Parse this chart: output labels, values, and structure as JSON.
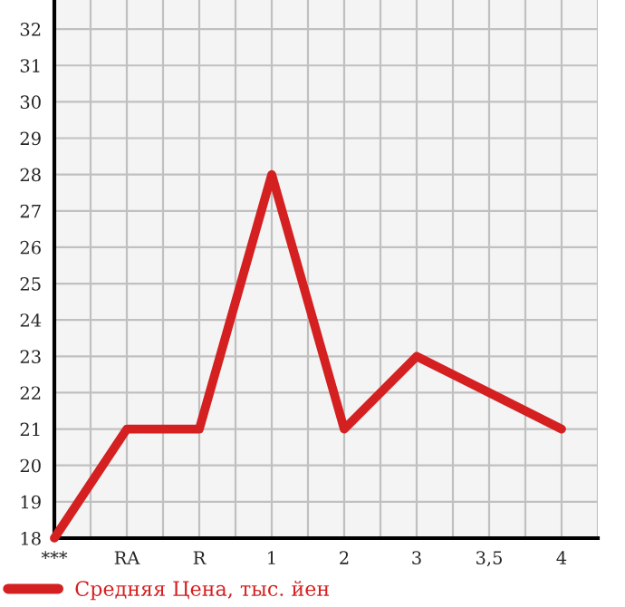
{
  "chart_data": {
    "type": "line",
    "categories": [
      "***",
      "RA",
      "R",
      "1",
      "2",
      "3",
      "3,5",
      "4"
    ],
    "series": [
      {
        "name": "Средняя Цена, тыс. йен",
        "color": "#d42020",
        "values": [
          18,
          21,
          21,
          28,
          21,
          23,
          22,
          21
        ]
      }
    ],
    "ylim": [
      18,
      32.8
    ],
    "yticks": [
      18,
      19,
      20,
      21,
      22,
      23,
      24,
      25,
      26,
      27,
      28,
      29,
      30,
      31,
      32
    ],
    "grid": true,
    "legend": "bottom",
    "marker": "none",
    "line_style": "solid"
  }
}
